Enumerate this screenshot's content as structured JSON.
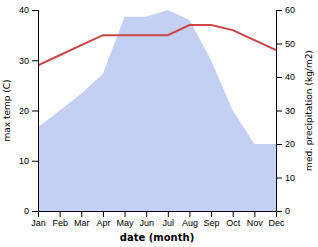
{
  "chart_data": {
    "type": "line",
    "categories": [
      "Jan",
      "Feb",
      "Mar",
      "Apr",
      "May",
      "Jun",
      "Jul",
      "Aug",
      "Sep",
      "Oct",
      "Nov",
      "Dec"
    ],
    "series": [
      {
        "type": "area",
        "axis": "y2",
        "color": "#aabbee",
        "values": [
          25,
          30,
          35,
          41,
          58,
          58,
          60,
          57,
          45,
          30,
          20,
          20
        ]
      },
      {
        "type": "line",
        "color": "#cc4444",
        "values": [
          29,
          31,
          33,
          35,
          35,
          35,
          35,
          37,
          37,
          36,
          34,
          32
        ]
      }
    ],
    "xlabel": "date (month)",
    "ylabel": "max temp (C)",
    "y2label": "med. precipitation (kg/m2)",
    "ylim": [
      0,
      40
    ],
    "yticks": [
      0,
      10,
      20,
      30,
      40
    ],
    "y2lim": [
      0,
      60
    ],
    "y2ticks": [
      0,
      10,
      20,
      30,
      40,
      50,
      60
    ],
    "grid": false
  }
}
